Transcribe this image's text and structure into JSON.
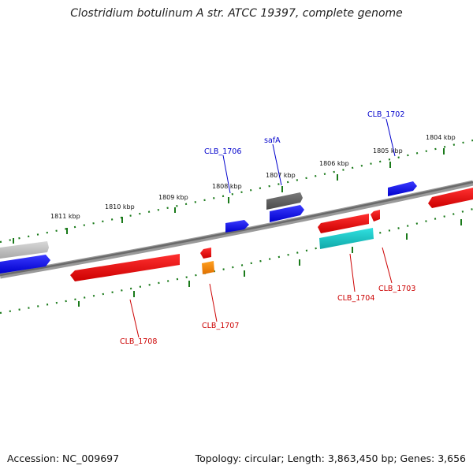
{
  "title": "Clostridium botulinum A str. ATCC 19397, complete genome",
  "footer": {
    "accession": "Accession: NC_009697",
    "summary": "Topology: circular; Length: 3,863,450 bp; Genes: 3,656"
  },
  "scale_labels": [
    "1811 kbp",
    "1810 kbp",
    "1809 kbp",
    "1808 kbp",
    "1807 kbp",
    "1806 kbp",
    "1805 kbp",
    "1804 kbp"
  ],
  "gene_labels": {
    "clb_1702": "CLB_1702",
    "clb_1703": "CLB_1703",
    "clb_1704": "CLB_1704",
    "clb_1706": "CLB_1706",
    "clb_1707": "CLB_1707",
    "clb_1708": "CLB_1708",
    "safa": "safA"
  },
  "colors": {
    "forward_strand": "#1a1aff",
    "reverse_strand": "#ff1a1a",
    "rna": "#19cccc",
    "pseudo": "#666666",
    "other": "#ff8c00",
    "tick": "#1a7a1a",
    "label_forward": "#0000cc",
    "label_reverse": "#cc0000"
  }
}
